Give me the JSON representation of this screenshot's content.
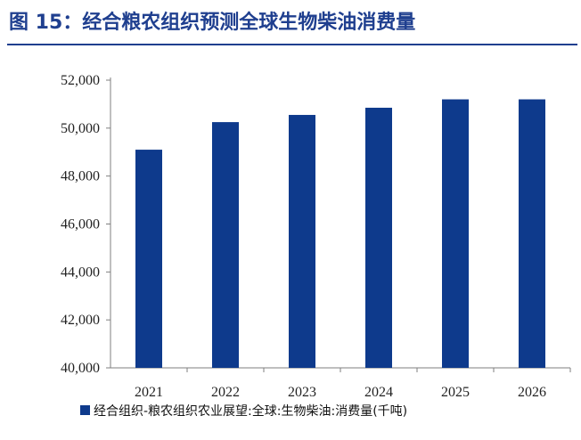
{
  "figure": {
    "title": "图 15：经合粮农组织预测全球生物柴油消费量"
  },
  "chart_data": {
    "type": "bar",
    "categories": [
      "2021",
      "2022",
      "2023",
      "2024",
      "2025",
      "2026"
    ],
    "series": [
      {
        "name": "经合组织-粮农组织农业展望:全球:生物柴油:消费量(千吨)",
        "values": [
          49100,
          50250,
          50550,
          50850,
          51200,
          51200
        ],
        "color": "#0e3a8c"
      }
    ],
    "ylim": [
      40000,
      52000
    ],
    "yticks": [
      40000,
      42000,
      44000,
      46000,
      48000,
      50000,
      52000
    ],
    "ytick_labels": [
      "40,000",
      "42,000",
      "44,000",
      "46,000",
      "48,000",
      "50,000",
      "52,000"
    ],
    "grid": false,
    "legend_position": "bottom-left"
  }
}
